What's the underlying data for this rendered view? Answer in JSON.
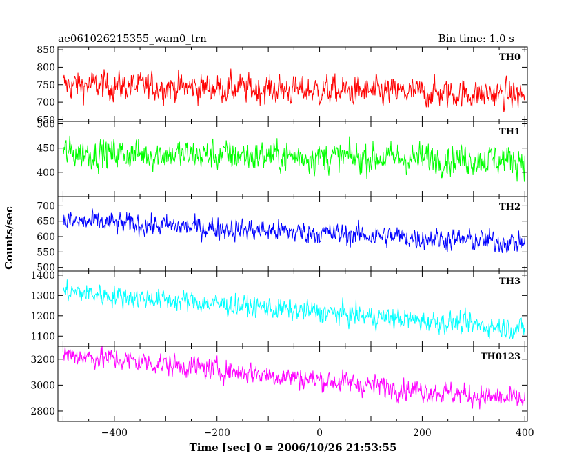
{
  "header": {
    "title": "ae061026215355_wam0_trn",
    "bin_time": "Bin time: 1.0 s"
  },
  "chart_data": {
    "type": "line",
    "shared_x": true,
    "x_range": [
      -510,
      405
    ],
    "x_ticks": [
      -400,
      -200,
      0,
      200,
      400
    ],
    "xlabel": "Time [sec] 0 = 2006/10/26 21:53:55",
    "ylabel": "Counts/sec",
    "x_data_range": [
      -500,
      400
    ],
    "bin_time_s": 1.0,
    "panels": [
      {
        "name": "TH0",
        "color": "#ff0000",
        "ylim": [
          645,
          858
        ],
        "yticks": [
          650,
          700,
          750,
          800,
          850
        ],
        "mean_start": 750,
        "mean_end": 720,
        "noise": 30
      },
      {
        "name": "TH1",
        "color": "#00ff00",
        "ylim": [
          350,
          505
        ],
        "yticks": [
          400,
          450,
          500
        ],
        "mean_start": 440,
        "mean_end": 425,
        "noise": 23
      },
      {
        "name": "TH2",
        "color": "#0000ff",
        "ylim": [
          488,
          730
        ],
        "yticks": [
          500,
          550,
          600,
          650,
          700
        ],
        "mean_start": 650,
        "mean_end": 580,
        "noise": 26
      },
      {
        "name": "TH3",
        "color": "#00ffff",
        "ylim": [
          1050,
          1420
        ],
        "yticks": [
          1100,
          1200,
          1300,
          1400
        ],
        "mean_start": 1320,
        "mean_end": 1135,
        "noise": 38
      },
      {
        "name": "TH0123",
        "color": "#ff00ff",
        "ylim": [
          2720,
          3300
        ],
        "yticks": [
          2800,
          3000,
          3200
        ],
        "mean_start": 3240,
        "mean_end": 2880,
        "noise": 62
      }
    ]
  }
}
